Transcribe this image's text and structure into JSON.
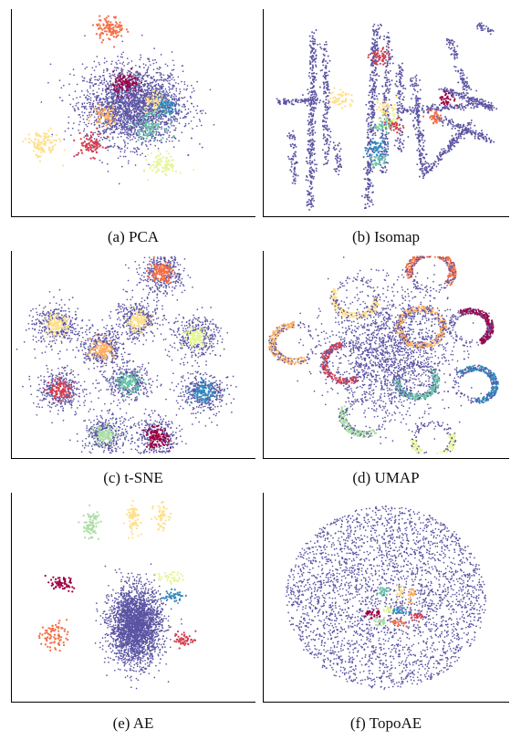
{
  "colors": {
    "background_points": "#5b54a3",
    "palette": [
      "#9e0142",
      "#d53e4f",
      "#f46d43",
      "#fdae61",
      "#fee08b",
      "#e6f598",
      "#abdda4",
      "#66c2a5",
      "#3288bd"
    ]
  },
  "chart_data": [
    {
      "type": "scatter",
      "id": "pca",
      "caption": "(a) PCA",
      "title": "",
      "xlabel": "",
      "ylabel": "",
      "xlim": [
        -1,
        1
      ],
      "ylim": [
        -1,
        1
      ],
      "grid": false,
      "legend": "none",
      "background_cloud": {
        "center": [
          0.0,
          0.08
        ],
        "spread": [
          0.38,
          0.36
        ],
        "count": 2600
      },
      "clusters": [
        {
          "center": [
            -0.2,
            0.86
          ],
          "spread": 0.06,
          "color": "#f46d43",
          "count": 110
        },
        {
          "center": [
            -0.06,
            0.3
          ],
          "spread": 0.055,
          "color": "#9e0142",
          "count": 90
        },
        {
          "center": [
            0.2,
            0.1
          ],
          "spread": 0.05,
          "color": "#fee08b",
          "count": 60
        },
        {
          "center": [
            0.28,
            0.06
          ],
          "spread": 0.05,
          "color": "#3288bd",
          "count": 70
        },
        {
          "center": [
            -0.24,
            -0.02
          ],
          "spread": 0.05,
          "color": "#fdae61",
          "count": 60
        },
        {
          "center": [
            0.14,
            -0.12
          ],
          "spread": 0.065,
          "color": "#66c2a5",
          "count": 90
        },
        {
          "center": [
            -0.36,
            -0.32
          ],
          "spread": 0.06,
          "color": "#d53e4f",
          "count": 80
        },
        {
          "center": [
            -0.78,
            -0.32
          ],
          "spread": 0.07,
          "color": "#fee08b",
          "count": 110
        },
        {
          "center": [
            0.26,
            -0.52
          ],
          "spread": 0.06,
          "color": "#e6f598",
          "count": 90
        }
      ]
    },
    {
      "type": "scatter",
      "id": "isomap",
      "caption": "(b) Isomap",
      "title": "",
      "xlabel": "",
      "ylabel": "",
      "xlim": [
        -1,
        1
      ],
      "ylim": [
        -1,
        1
      ],
      "grid": false,
      "legend": "none",
      "background_strands": [
        {
          "from": [
            -0.62,
            0.85
          ],
          "to": [
            -0.64,
            -0.95
          ],
          "count": 320
        },
        {
          "from": [
            -0.52,
            0.7
          ],
          "to": [
            -0.5,
            -0.5
          ],
          "count": 160
        },
        {
          "from": [
            -0.08,
            0.9
          ],
          "to": [
            -0.16,
            -0.98
          ],
          "count": 380
        },
        {
          "from": [
            0.02,
            0.8
          ],
          "to": [
            -0.02,
            -0.6
          ],
          "count": 200
        },
        {
          "from": [
            0.12,
            0.5
          ],
          "to": [
            0.12,
            -0.4
          ],
          "count": 110
        },
        {
          "from": [
            -0.92,
            0.12
          ],
          "to": [
            -0.55,
            0.12
          ],
          "count": 90
        },
        {
          "from": [
            0.12,
            0.02
          ],
          "to": [
            0.78,
            0.08
          ],
          "count": 130
        },
        {
          "from": [
            0.48,
            0.25
          ],
          "to": [
            0.92,
            0.05
          ],
          "count": 170
        },
        {
          "from": [
            0.44,
            -0.05
          ],
          "to": [
            0.9,
            -0.28
          ],
          "count": 120
        },
        {
          "from": [
            0.34,
            -0.6
          ],
          "to": [
            0.72,
            -0.1
          ],
          "count": 160
        },
        {
          "from": [
            0.24,
            0.35
          ],
          "to": [
            0.32,
            -0.65
          ],
          "count": 180
        },
        {
          "from": [
            0.62,
            0.45
          ],
          "to": [
            0.7,
            0.22
          ],
          "count": 60
        },
        {
          "from": [
            0.54,
            0.75
          ],
          "to": [
            0.6,
            0.55
          ],
          "count": 40
        },
        {
          "from": [
            0.78,
            0.9
          ],
          "to": [
            0.9,
            0.82
          ],
          "count": 30
        },
        {
          "from": [
            -0.8,
            -0.2
          ],
          "to": [
            -0.78,
            -0.7
          ],
          "count": 70
        },
        {
          "from": [
            -0.42,
            -0.3
          ],
          "to": [
            -0.4,
            -0.6
          ],
          "count": 40
        }
      ],
      "clusters": [
        {
          "center": [
            -0.06,
            0.58
          ],
          "spread": 0.04,
          "color": "#d53e4f",
          "count": 50
        },
        {
          "center": [
            -0.38,
            0.14
          ],
          "spread": 0.05,
          "color": "#fee08b",
          "count": 50
        },
        {
          "center": [
            0.0,
            0.06
          ],
          "spread": 0.045,
          "color": "#fee08b",
          "count": 40
        },
        {
          "center": [
            0.04,
            -0.08
          ],
          "spread": 0.045,
          "color": "#e6f598",
          "count": 40
        },
        {
          "center": [
            -0.02,
            -0.12
          ],
          "spread": 0.04,
          "color": "#66c2a5",
          "count": 40
        },
        {
          "center": [
            0.08,
            -0.12
          ],
          "spread": 0.035,
          "color": "#d53e4f",
          "count": 30
        },
        {
          "center": [
            0.52,
            0.14
          ],
          "spread": 0.035,
          "color": "#9e0142",
          "count": 35
        },
        {
          "center": [
            0.42,
            -0.04
          ],
          "spread": 0.035,
          "color": "#f46d43",
          "count": 35
        },
        {
          "center": [
            -0.08,
            -0.36
          ],
          "spread": 0.05,
          "color": "#3288bd",
          "count": 60
        },
        {
          "center": [
            -0.06,
            -0.48
          ],
          "spread": 0.035,
          "color": "#66c2a5",
          "count": 30
        }
      ]
    },
    {
      "type": "scatter",
      "id": "tsne",
      "caption": "(c) t-SNE",
      "title": "",
      "xlabel": "",
      "ylabel": "",
      "xlim": [
        -1,
        1
      ],
      "ylim": [
        -1,
        1
      ],
      "grid": false,
      "legend": "none",
      "ring_spread": 0.16,
      "ring_count": 340,
      "clusters": [
        {
          "center": [
            0.24,
            0.84
          ],
          "spread": 0.05,
          "color": "#f46d43",
          "count": 120
        },
        {
          "center": [
            0.04,
            0.34
          ],
          "spread": 0.05,
          "color": "#fee08b",
          "count": 110
        },
        {
          "center": [
            -0.66,
            0.3
          ],
          "spread": 0.05,
          "color": "#fee08b",
          "count": 110
        },
        {
          "center": [
            0.54,
            0.18
          ],
          "spread": 0.05,
          "color": "#e6f598",
          "count": 110
        },
        {
          "center": [
            -0.26,
            0.06
          ],
          "spread": 0.05,
          "color": "#fdae61",
          "count": 110
        },
        {
          "center": [
            -0.62,
            -0.36
          ],
          "spread": 0.05,
          "color": "#d53e4f",
          "count": 110
        },
        {
          "center": [
            -0.04,
            -0.28
          ],
          "spread": 0.05,
          "color": "#66c2a5",
          "count": 110
        },
        {
          "center": [
            0.6,
            -0.38
          ],
          "spread": 0.05,
          "color": "#3288bd",
          "count": 110
        },
        {
          "center": [
            -0.24,
            -0.82
          ],
          "spread": 0.05,
          "color": "#abdda4",
          "count": 110
        },
        {
          "center": [
            0.2,
            -0.84
          ],
          "spread": 0.05,
          "color": "#9e0142",
          "count": 110
        }
      ]
    },
    {
      "type": "scatter",
      "id": "umap",
      "caption": "(d) UMAP",
      "title": "",
      "xlabel": "",
      "ylabel": "",
      "xlim": [
        -1,
        1
      ],
      "ylim": [
        -1,
        1
      ],
      "grid": false,
      "legend": "none",
      "background_cloud": {
        "center": [
          0.04,
          0.04
        ],
        "spread": [
          0.46,
          0.58
        ],
        "count": 1700
      },
      "rings": [
        {
          "center": [
            0.38,
            0.84
          ],
          "radius": 0.2,
          "color": "#f46d43",
          "arc": [
            -40,
            200
          ],
          "count": 260
        },
        {
          "center": [
            -0.26,
            0.58
          ],
          "radius": 0.2,
          "color": "#fee08b",
          "arc": [
            150,
            360
          ],
          "count": 180
        },
        {
          "center": [
            0.3,
            0.28
          ],
          "radius": 0.2,
          "color": "#fdae61",
          "arc": [
            0,
            360
          ],
          "count": 260
        },
        {
          "center": [
            0.72,
            0.28
          ],
          "radius": 0.18,
          "color": "#9e0142",
          "arc": [
            -60,
            120
          ],
          "count": 240
        },
        {
          "center": [
            -0.78,
            0.12
          ],
          "radius": 0.2,
          "color": "#fdae61",
          "arc": [
            90,
            300
          ],
          "count": 200
        },
        {
          "center": [
            -0.34,
            -0.08
          ],
          "radius": 0.2,
          "color": "#d53e4f",
          "arc": [
            100,
            300
          ],
          "count": 220
        },
        {
          "center": [
            0.26,
            -0.26
          ],
          "radius": 0.18,
          "color": "#66c2a5",
          "arc": [
            180,
            400
          ],
          "count": 220
        },
        {
          "center": [
            0.76,
            -0.3
          ],
          "radius": 0.18,
          "color": "#3288bd",
          "arc": [
            -90,
            140
          ],
          "count": 240
        },
        {
          "center": [
            -0.18,
            -0.62
          ],
          "radius": 0.2,
          "color": "#abdda4",
          "arc": [
            150,
            300
          ],
          "count": 180
        },
        {
          "center": [
            0.4,
            -0.86
          ],
          "radius": 0.18,
          "color": "#e6f598",
          "arc": [
            180,
            380
          ],
          "count": 200
        }
      ]
    },
    {
      "type": "scatter",
      "id": "ae",
      "caption": "(e) AE",
      "title": "",
      "xlabel": "",
      "ylabel": "",
      "xlim": [
        -1,
        1
      ],
      "ylim": [
        -1,
        1
      ],
      "grid": false,
      "legend": "none",
      "background_cloud": {
        "center": [
          0.02,
          -0.28
        ],
        "spread": [
          0.2,
          0.34
        ],
        "count": 2700
      },
      "clusters": [
        {
          "center": [
            -0.36,
            0.73
          ],
          "spread": 0.035,
          "stretch": [
            1,
            2.2
          ],
          "color": "#abdda4",
          "count": 80
        },
        {
          "center": [
            0.0,
            0.8
          ],
          "spread": 0.03,
          "stretch": [
            1,
            2.4
          ],
          "color": "#fee08b",
          "count": 70
        },
        {
          "center": [
            0.24,
            0.82
          ],
          "spread": 0.03,
          "stretch": [
            1,
            2.4
          ],
          "color": "#fee08b",
          "count": 60
        },
        {
          "center": [
            -0.62,
            0.14
          ],
          "spread": 0.035,
          "stretch": [
            1.8,
            1
          ],
          "color": "#9e0142",
          "count": 60
        },
        {
          "center": [
            0.32,
            0.2
          ],
          "spread": 0.03,
          "stretch": [
            1.8,
            1
          ],
          "color": "#e6f598",
          "count": 40
        },
        {
          "center": [
            0.34,
            0.02
          ],
          "spread": 0.025,
          "stretch": [
            1.8,
            1
          ],
          "color": "#3288bd",
          "count": 40
        },
        {
          "center": [
            -0.68,
            -0.38
          ],
          "spread": 0.045,
          "stretch": [
            1.2,
            1.6
          ],
          "color": "#f46d43",
          "count": 80
        },
        {
          "center": [
            0.44,
            -0.42
          ],
          "spread": 0.035,
          "stretch": [
            1.4,
            1
          ],
          "color": "#d53e4f",
          "count": 50
        }
      ]
    },
    {
      "type": "scatter",
      "id": "topoae",
      "caption": "(f) TopoAE",
      "title": "",
      "xlabel": "",
      "ylabel": "",
      "xlim": [
        -1,
        1
      ],
      "ylim": [
        -1,
        1
      ],
      "grid": false,
      "legend": "none",
      "background_cloud": {
        "center": [
          0.0,
          0.0
        ],
        "spread": [
          0.74,
          0.8
        ],
        "count": 3000,
        "shape": "disk"
      },
      "clusters": [
        {
          "center": [
            -0.12,
            -0.16
          ],
          "spread": 0.025,
          "stretch": [
            1.6,
            1
          ],
          "color": "#9e0142",
          "count": 30
        },
        {
          "center": [
            0.02,
            -0.12
          ],
          "spread": 0.02,
          "stretch": [
            1.6,
            1
          ],
          "color": "#e6f598",
          "count": 22
        },
        {
          "center": [
            0.12,
            -0.14
          ],
          "spread": 0.02,
          "stretch": [
            1.6,
            1
          ],
          "color": "#3288bd",
          "count": 22
        },
        {
          "center": [
            0.26,
            -0.18
          ],
          "spread": 0.02,
          "stretch": [
            1.6,
            1
          ],
          "color": "#d53e4f",
          "count": 22
        },
        {
          "center": [
            -0.04,
            -0.24
          ],
          "spread": 0.02,
          "stretch": [
            1.6,
            1
          ],
          "color": "#abdda4",
          "count": 22
        },
        {
          "center": [
            0.1,
            -0.26
          ],
          "spread": 0.02,
          "stretch": [
            1.6,
            1
          ],
          "color": "#f46d43",
          "count": 22
        },
        {
          "center": [
            -0.02,
            0.06
          ],
          "spread": 0.02,
          "stretch": [
            1,
            1.8
          ],
          "color": "#66c2a5",
          "count": 22
        },
        {
          "center": [
            0.12,
            0.06
          ],
          "spread": 0.02,
          "stretch": [
            1,
            1.8
          ],
          "color": "#fee08b",
          "count": 22
        },
        {
          "center": [
            0.22,
            0.04
          ],
          "spread": 0.02,
          "stretch": [
            1,
            1.8
          ],
          "color": "#fdae61",
          "count": 22
        }
      ]
    }
  ]
}
